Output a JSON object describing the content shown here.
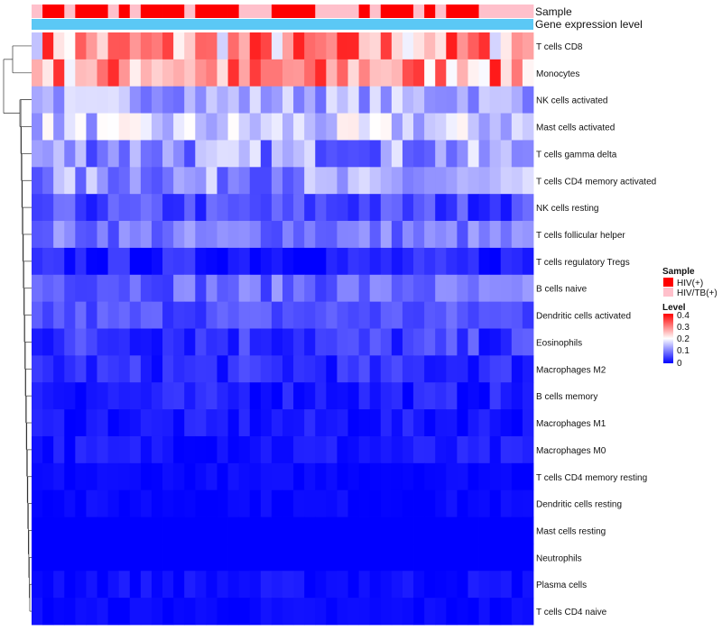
{
  "chart_data": {
    "type": "heatmap",
    "annotation_tracks": [
      "Sample",
      "Gene expression level"
    ],
    "sample_groups": [
      "HIV(+)",
      "HIV/TB(+)"
    ],
    "sample_group_colors": {
      "HIV(+)": "#ff0000",
      "HIV/TB(+)": "#ffc0cb"
    },
    "sample_annotation": [
      1,
      0,
      0,
      1,
      0,
      0,
      0,
      1,
      0,
      1,
      0,
      0,
      0,
      0,
      1,
      0,
      0,
      0,
      0,
      1,
      1,
      1,
      0,
      0,
      0,
      0,
      1,
      1,
      1,
      1,
      0,
      1,
      0,
      0,
      0,
      1,
      0,
      1,
      0,
      0,
      0,
      1,
      1,
      1,
      1,
      1
    ],
    "expression_track_color": "#5bc8f5",
    "rows": [
      "T cells CD8",
      "Monocytes",
      "NK cells activated",
      "Mast cells activated",
      "T cells gamma delta",
      "T cells CD4 memory activated",
      "NK cells resting",
      "T cells follicular helper",
      "T cells regulatory  Tregs",
      "B cells naive",
      "Dendritic cells activated",
      "Eosinophils",
      "Macrophages M2",
      "B cells memory",
      "Macrophages M1",
      "Macrophages M0",
      "T cells CD4 memory resting",
      "Dendritic cells resting",
      "Mast cells resting",
      "Neutrophils",
      "Plasma cells",
      "T cells CD4 naive"
    ],
    "row_means": [
      0.26,
      0.27,
      0.13,
      0.15,
      0.11,
      0.11,
      0.05,
      0.09,
      0.02,
      0.08,
      0.06,
      0.04,
      0.03,
      0.02,
      0.015,
      0.015,
      0.005,
      0.005,
      0.0,
      0.0,
      0.01,
      0.005
    ],
    "row_spread": [
      0.12,
      0.1,
      0.05,
      0.06,
      0.07,
      0.06,
      0.04,
      0.04,
      0.03,
      0.04,
      0.03,
      0.04,
      0.03,
      0.025,
      0.02,
      0.02,
      0.01,
      0.01,
      0.0,
      0.0,
      0.015,
      0.01
    ],
    "n_samples": 46,
    "legend": {
      "sample_title": "Sample",
      "level_title": "Level",
      "level_ticks": [
        "0.4",
        "0.3",
        "0.2",
        "0.1",
        "0"
      ],
      "range": [
        0,
        0.4
      ],
      "colors": {
        "low": "#0000ff",
        "mid": "#ffffff",
        "high": "#ff0000"
      },
      "placement": "right"
    }
  }
}
